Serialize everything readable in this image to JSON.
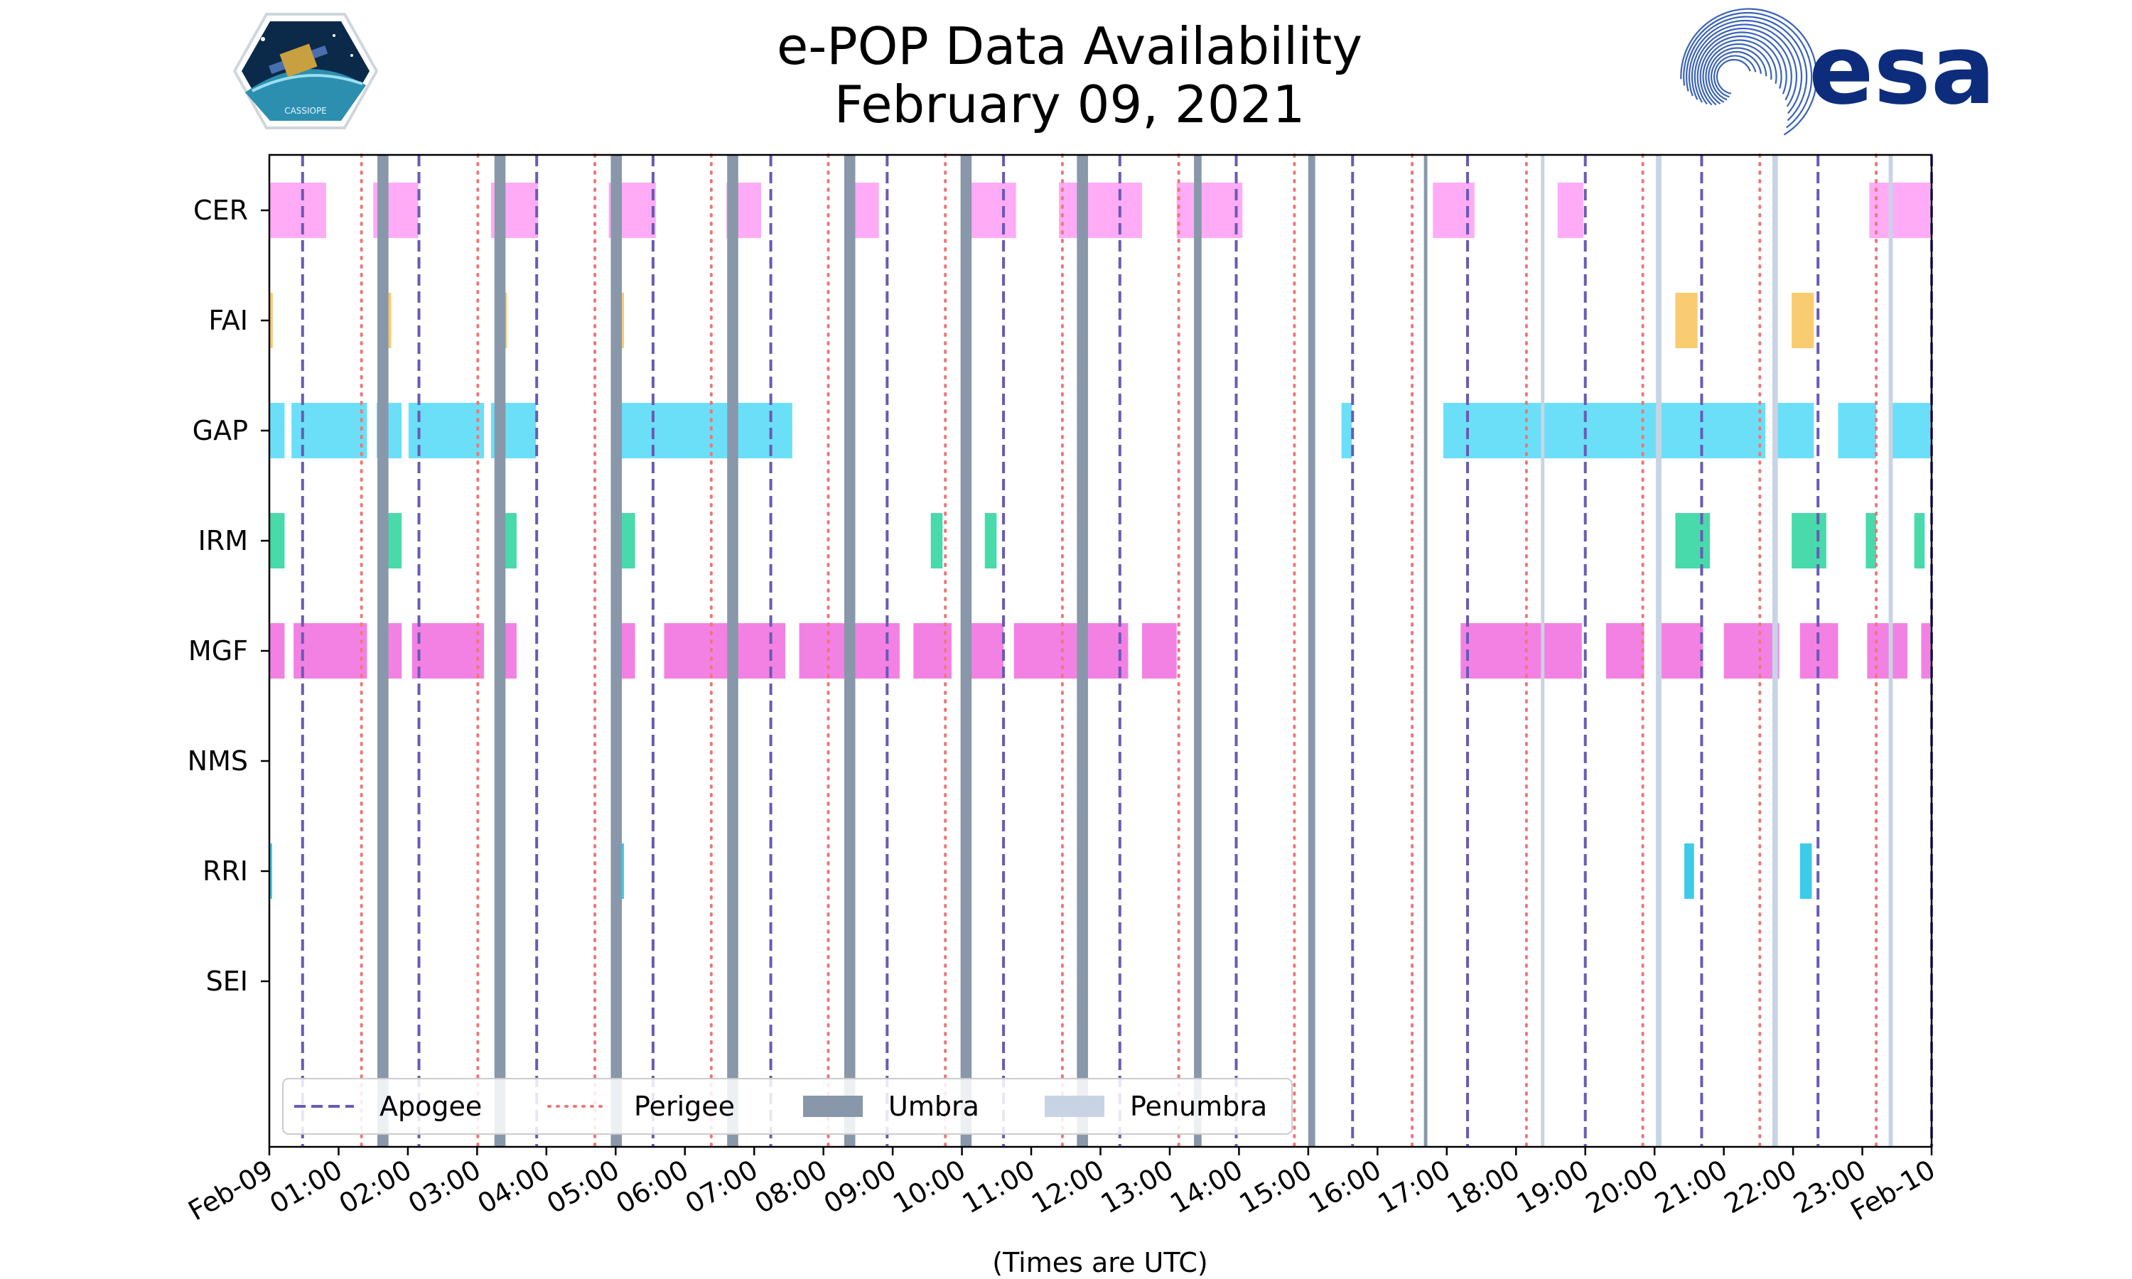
{
  "chart_data": {
    "type": "timeline",
    "title": [
      "e-POP Data Availability",
      "February 09, 2021"
    ],
    "xlabel": "(Times are UTC)",
    "x_unit": "hours UTC",
    "xlim": [
      0,
      24
    ],
    "tick_hours": [
      0,
      1,
      2,
      3,
      4,
      5,
      6,
      7,
      8,
      9,
      10,
      11,
      12,
      13,
      14,
      15,
      16,
      17,
      18,
      19,
      20,
      21,
      22,
      23,
      24
    ],
    "tick_labels": [
      "Feb-09",
      "01:00",
      "02:00",
      "03:00",
      "04:00",
      "05:00",
      "06:00",
      "07:00",
      "08:00",
      "09:00",
      "10:00",
      "11:00",
      "12:00",
      "13:00",
      "14:00",
      "15:00",
      "16:00",
      "17:00",
      "18:00",
      "19:00",
      "20:00",
      "21:00",
      "22:00",
      "23:00",
      "Feb-10"
    ],
    "instruments": [
      "CER",
      "FAI",
      "GAP",
      "IRM",
      "MGF",
      "NMS",
      "RRI",
      "SEI"
    ],
    "colors": {
      "CER": "#ffa6f5",
      "FAI": "#f9c96a",
      "GAP": "#63ddf8",
      "IRM": "#3ed8a7",
      "MGF": "#f27ae3",
      "NMS": "#cccccc",
      "RRI": "#33c8e8",
      "SEI": "#cccccc",
      "apogee": "#6a5ab5",
      "perigee": "#ee7777",
      "umbra": "#8898aa",
      "penumbra": "#c8d4e4"
    },
    "availability": {
      "CER": [
        [
          0,
          0.82
        ],
        [
          1.5,
          2.15
        ],
        [
          3.2,
          3.88
        ],
        [
          4.9,
          5.58
        ],
        [
          6.6,
          7.1
        ],
        [
          8.4,
          8.8
        ],
        [
          10.1,
          10.78
        ],
        [
          11.4,
          12.6
        ],
        [
          13.1,
          14.05
        ],
        [
          16.8,
          17.4
        ],
        [
          18.6,
          18.97
        ],
        [
          23.1,
          24
        ]
      ],
      "FAI": [
        [
          0,
          0.05
        ],
        [
          1.68,
          1.76
        ],
        [
          3.36,
          3.43
        ],
        [
          5.08,
          5.12
        ],
        [
          20.3,
          20.62
        ],
        [
          21.98,
          22.3
        ]
      ],
      "GAP": [
        [
          0,
          0.22
        ],
        [
          0.32,
          1.41
        ],
        [
          1.55,
          1.91
        ],
        [
          2.01,
          3.1
        ],
        [
          3.2,
          3.85
        ],
        [
          4.98,
          7.55
        ],
        [
          15.48,
          15.63
        ],
        [
          16.95,
          21.6
        ],
        [
          21.73,
          22.3
        ],
        [
          22.65,
          23.2
        ],
        [
          23.43,
          24
        ]
      ],
      "IRM": [
        [
          0,
          0.22
        ],
        [
          1.65,
          1.91
        ],
        [
          3.36,
          3.57
        ],
        [
          5.05,
          5.28
        ],
        [
          9.55,
          9.72
        ],
        [
          10.33,
          10.5
        ],
        [
          20.3,
          20.8
        ],
        [
          21.98,
          22.48
        ],
        [
          23.05,
          23.2
        ],
        [
          23.75,
          23.9
        ]
      ],
      "MGF": [
        [
          0,
          0.22
        ],
        [
          0.35,
          1.41
        ],
        [
          1.58,
          1.91
        ],
        [
          2.06,
          3.1
        ],
        [
          3.28,
          3.57
        ],
        [
          5.05,
          5.28
        ],
        [
          5.7,
          7.45
        ],
        [
          7.65,
          9.1
        ],
        [
          9.3,
          9.85
        ],
        [
          10.05,
          10.6
        ],
        [
          10.75,
          12.4
        ],
        [
          12.6,
          13.1
        ],
        [
          17.2,
          18.95
        ],
        [
          19.3,
          19.85
        ],
        [
          20.1,
          20.7
        ],
        [
          21.0,
          21.8
        ],
        [
          22.1,
          22.65
        ],
        [
          23.07,
          23.65
        ],
        [
          23.85,
          24
        ]
      ],
      "NMS": [],
      "RRI": [
        [
          0,
          0.04
        ],
        [
          5.05,
          5.12
        ],
        [
          20.43,
          20.57
        ],
        [
          22.1,
          22.27
        ]
      ],
      "SEI": []
    },
    "apogee": [
      0.48,
      2.16,
      3.86,
      5.54,
      7.24,
      8.92,
      10.6,
      12.28,
      13.96,
      15.64,
      17.3,
      19.0,
      20.68,
      22.36,
      24.0
    ],
    "perigee": [
      1.33,
      3.01,
      4.7,
      6.38,
      8.07,
      9.76,
      11.45,
      13.13,
      14.8,
      16.5,
      18.15,
      19.83,
      21.52,
      23.2
    ],
    "umbra": [
      [
        1.56,
        1.72
      ],
      [
        3.25,
        3.41
      ],
      [
        4.93,
        5.09
      ],
      [
        6.61,
        6.77
      ],
      [
        8.3,
        8.46
      ],
      [
        9.98,
        10.14
      ],
      [
        11.66,
        11.82
      ],
      [
        13.35,
        13.46
      ],
      [
        15.0,
        15.1
      ],
      [
        16.67,
        16.72
      ]
    ],
    "penumbra": [
      [
        18.36,
        18.41
      ],
      [
        20.02,
        20.1
      ],
      [
        21.7,
        21.78
      ],
      [
        23.38,
        23.44
      ]
    ],
    "legend": [
      {
        "key": "apogee",
        "label": "Apogee"
      },
      {
        "key": "perigee",
        "label": "Perigee"
      },
      {
        "key": "umbra",
        "label": "Umbra"
      },
      {
        "key": "penumbra",
        "label": "Penumbra"
      }
    ],
    "legend_position": "lower-left"
  },
  "logos": {
    "mission_badge": {
      "text": "CASSIOPE"
    },
    "agency": {
      "text": "esa"
    }
  }
}
